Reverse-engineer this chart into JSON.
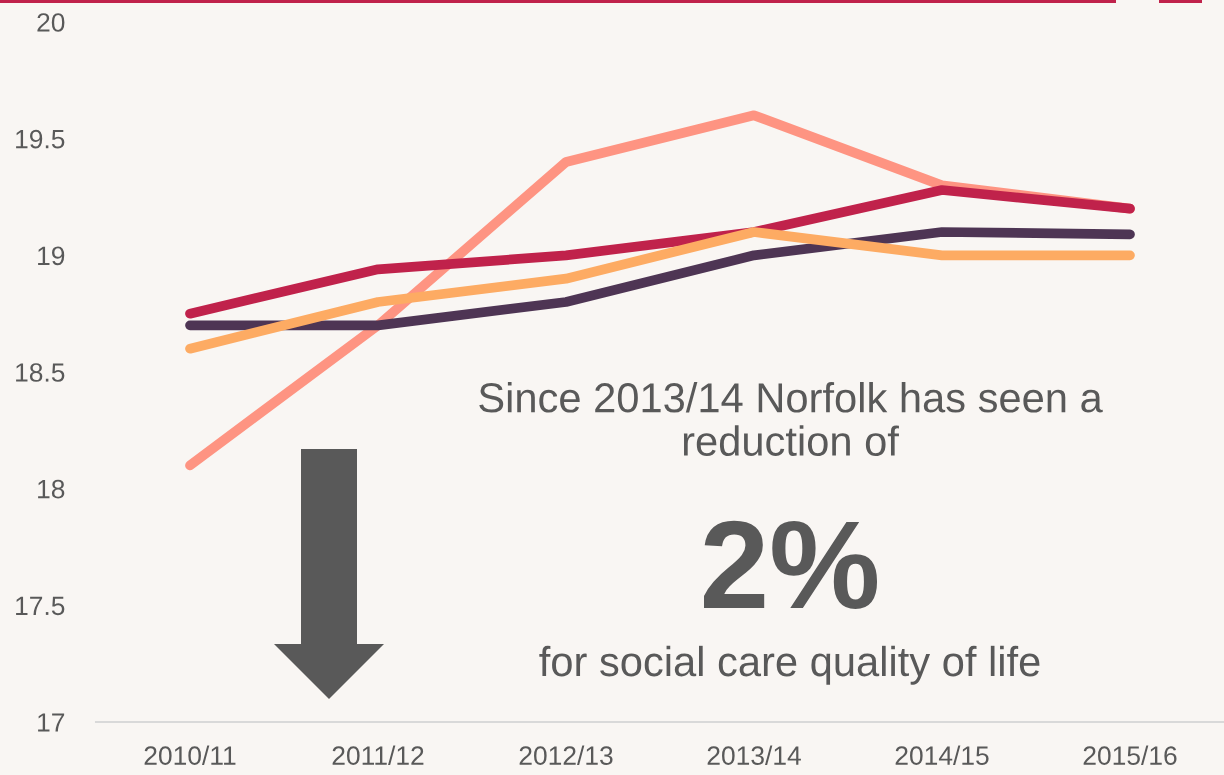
{
  "chart_data": {
    "type": "line",
    "categories": [
      "2010/11",
      "2011/12",
      "2012/13",
      "2013/14",
      "2014/15",
      "2015/16"
    ],
    "series": [
      {
        "color": "#fe9482",
        "values": [
          18.1,
          18.7,
          19.4,
          19.6,
          19.3,
          19.2
        ]
      },
      {
        "color": "#4e3554",
        "values": [
          18.7,
          18.7,
          18.8,
          19.0,
          19.1,
          19.09
        ]
      },
      {
        "color": "#c0224b",
        "values": [
          18.75,
          18.94,
          19.0,
          19.1,
          19.28,
          19.2
        ]
      },
      {
        "color": "#fdab63",
        "values": [
          18.6,
          18.8,
          18.9,
          19.1,
          19.0,
          19.0
        ]
      }
    ],
    "ylim": [
      17,
      20
    ],
    "yticks": [
      17,
      17.5,
      18,
      18.5,
      19,
      19.5,
      20
    ],
    "annotations": [
      "Since 2013/14 Norfolk has seen a reduction of",
      "2%",
      "for social care quality of life"
    ]
  }
}
